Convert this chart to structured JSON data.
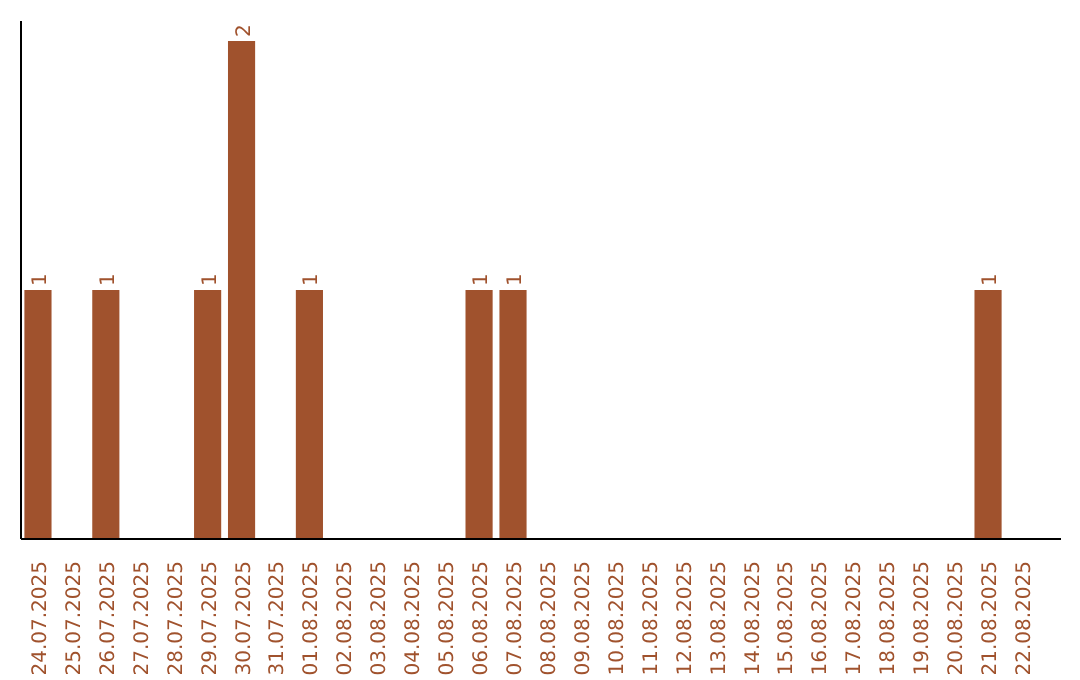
{
  "chart_data": {
    "type": "bar",
    "categories": [
      "24.07.2025",
      "25.07.2025",
      "26.07.2025",
      "27.07.2025",
      "28.07.2025",
      "29.07.2025",
      "30.07.2025",
      "31.07.2025",
      "01.08.2025",
      "02.08.2025",
      "03.08.2025",
      "04.08.2025",
      "05.08.2025",
      "06.08.2025",
      "07.08.2025",
      "08.08.2025",
      "09.08.2025",
      "10.08.2025",
      "11.08.2025",
      "12.08.2025",
      "13.08.2025",
      "14.08.2025",
      "15.08.2025",
      "16.08.2025",
      "17.08.2025",
      "18.08.2025",
      "19.08.2025",
      "20.08.2025",
      "21.08.2025",
      "22.08.2025"
    ],
    "values": [
      1,
      0,
      1,
      0,
      0,
      1,
      2,
      0,
      1,
      0,
      0,
      0,
      0,
      1,
      1,
      0,
      0,
      0,
      0,
      0,
      0,
      0,
      0,
      0,
      0,
      0,
      0,
      0,
      1,
      0
    ],
    "value_labels": [
      "1",
      null,
      "1",
      null,
      null,
      "1",
      "2",
      null,
      "1",
      null,
      null,
      null,
      null,
      "1",
      "1",
      null,
      null,
      null,
      null,
      null,
      null,
      null,
      null,
      null,
      null,
      null,
      null,
      null,
      "1",
      null
    ],
    "color": "#a0522d",
    "grid": false
  }
}
